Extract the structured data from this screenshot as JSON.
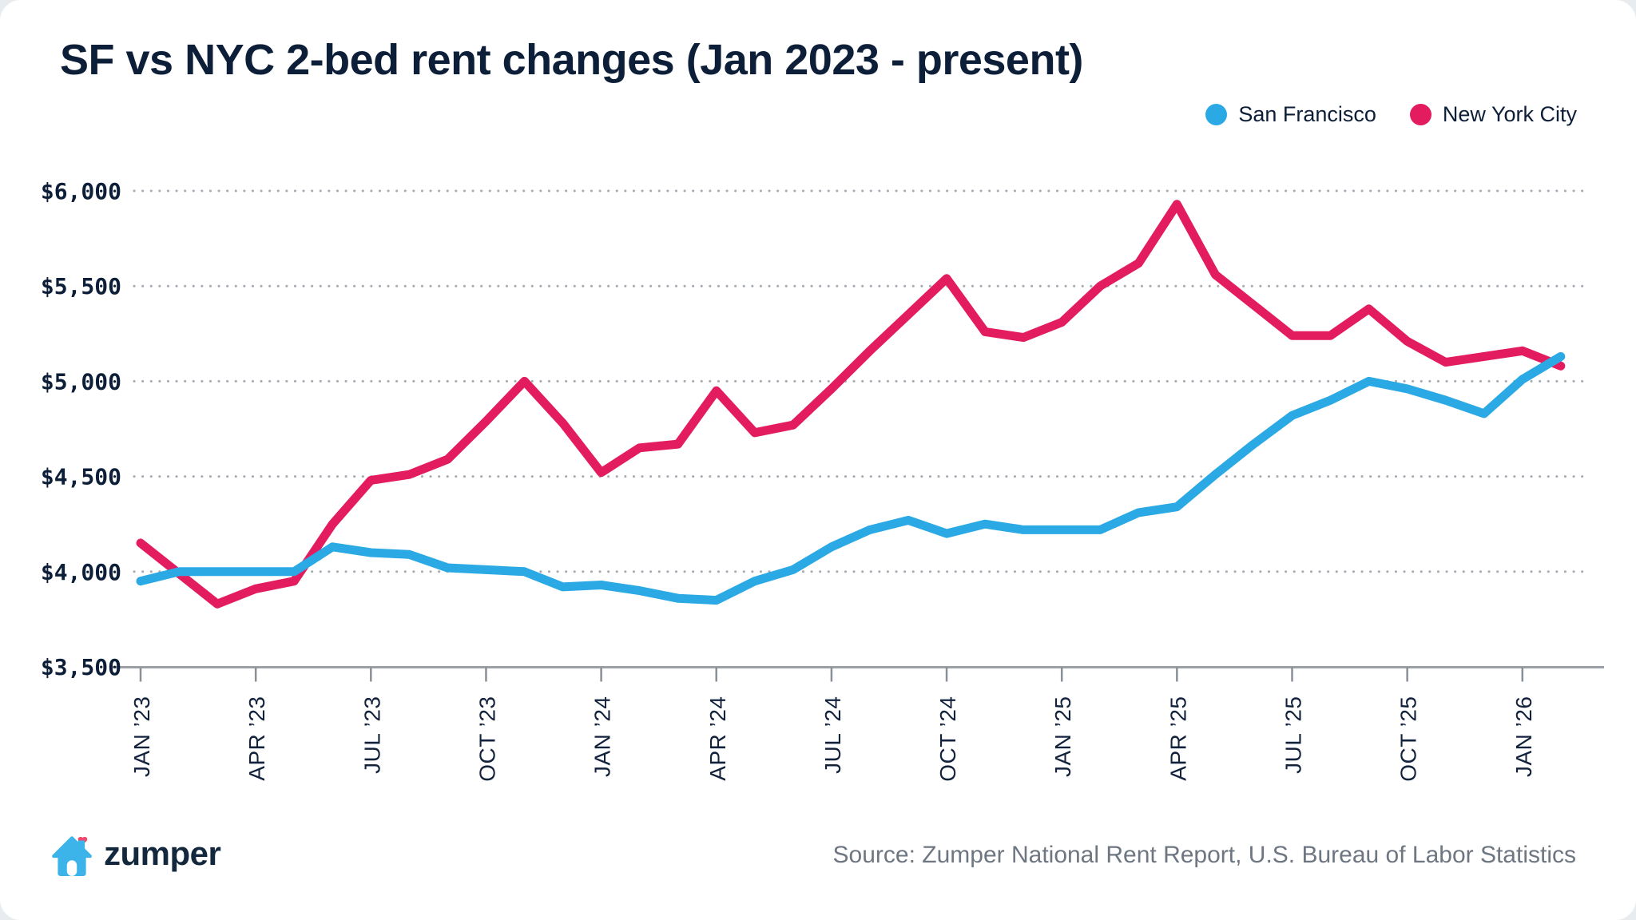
{
  "title": "SF vs NYC 2-bed rent changes (Jan 2023 - present)",
  "legend": {
    "items": [
      {
        "label": "San Francisco",
        "color": "#2BA9E5"
      },
      {
        "label": "New York City",
        "color": "#E31C5F"
      }
    ]
  },
  "footer": {
    "logo_text": "zumper",
    "source": "Source: Zumper National Rent Report, U.S. Bureau of Labor Statistics"
  },
  "colors": {
    "sf_blue": "#2BA9E5",
    "nyc_pink": "#E31C5F",
    "heart_pink": "#F0486F",
    "house_blue": "#3CB4EA",
    "text_dark": "#0d1f38",
    "grid_gray": "#a6abb1"
  },
  "chart_data": {
    "type": "line",
    "title": "SF vs NYC 2-bed rent changes (Jan 2023 - present)",
    "xlabel": "",
    "ylabel": "",
    "ylim": [
      3500,
      6000
    ],
    "y_tick_step": 500,
    "grid": "dotted horizontal",
    "legend_position": "top-right",
    "y_tick_labels": [
      "$3,500",
      "$4,000",
      "$4,500",
      "$5,000",
      "$5,500",
      "$6,000"
    ],
    "x_tick_labels": [
      "JAN ’23",
      "APR ’23",
      "JUL ’23",
      "OCT ’23",
      "JAN ’24",
      "APR ’24",
      "JUL ’24",
      "OCT ’24",
      "JAN ’25",
      "APR ’25",
      "JUL ’25",
      "OCT ’25",
      "JAN ’26"
    ],
    "x_tick_month_indexes": [
      0,
      3,
      6,
      9,
      12,
      15,
      18,
      21,
      24,
      27,
      30,
      33,
      36
    ],
    "months": [
      "2023-01",
      "2023-02",
      "2023-03",
      "2023-04",
      "2023-05",
      "2023-06",
      "2023-07",
      "2023-08",
      "2023-09",
      "2023-10",
      "2023-11",
      "2023-12",
      "2024-01",
      "2024-02",
      "2024-03",
      "2024-04",
      "2024-05",
      "2024-06",
      "2024-07",
      "2024-08",
      "2024-09",
      "2024-10",
      "2024-11",
      "2024-12",
      "2025-01",
      "2025-02",
      "2025-03",
      "2025-04",
      "2025-05",
      "2025-06",
      "2025-07",
      "2025-08",
      "2025-09",
      "2025-10",
      "2025-11",
      "2025-12",
      "2026-01",
      "2026-02"
    ],
    "series": [
      {
        "name": "San Francisco",
        "color": "#2BA9E5",
        "values": [
          3950,
          4000,
          4000,
          4000,
          4000,
          4130,
          4100,
          4090,
          4020,
          4010,
          4000,
          3920,
          3930,
          3900,
          3860,
          3850,
          3950,
          4010,
          4130,
          4220,
          4270,
          4200,
          4250,
          4220,
          4220,
          4220,
          4310,
          4340,
          4510,
          4670,
          4820,
          4900,
          5000,
          4960,
          4900,
          4830,
          5010,
          5130
        ]
      },
      {
        "name": "New York City",
        "color": "#E31C5F",
        "values": [
          4150,
          3990,
          3830,
          3910,
          3950,
          4250,
          4480,
          4510,
          4590,
          4790,
          5000,
          4780,
          4520,
          4650,
          4670,
          4950,
          4730,
          4770,
          4960,
          5160,
          5350,
          5540,
          5260,
          5230,
          5310,
          5500,
          5620,
          5930,
          5560,
          5400,
          5240,
          5240,
          5380,
          5210,
          5100,
          5130,
          5160,
          5080
        ]
      }
    ]
  }
}
